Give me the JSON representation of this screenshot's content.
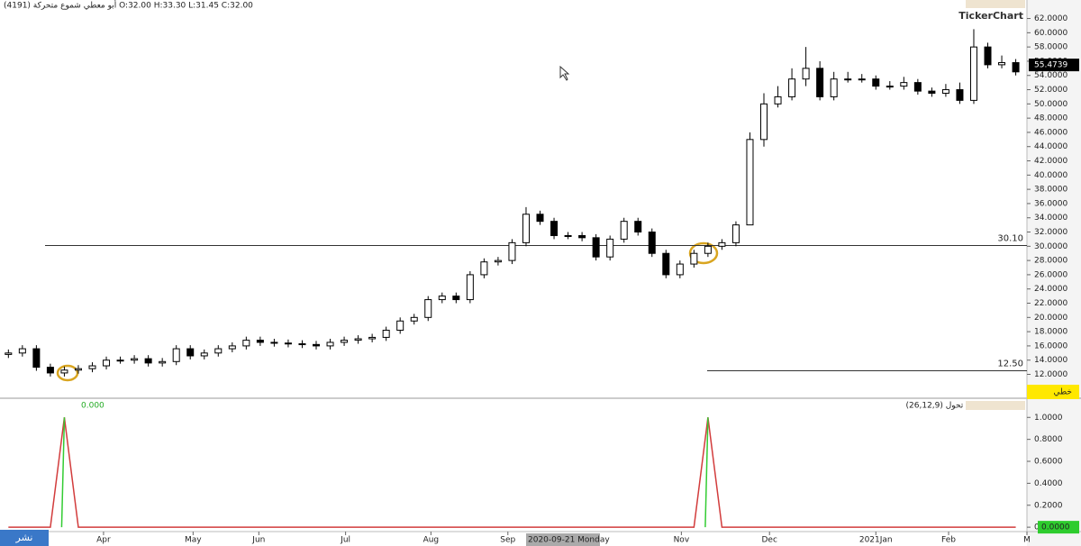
{
  "header": {
    "symbol_line": "أبو معطي شموع متحركة (4191) O:32.00 H:33.30 L:31.45 C:32.00",
    "logo": "TickerChart",
    "crosshair_date": "2020-09-21 Monday",
    "publish_button": "نشر",
    "style_button": "خطي"
  },
  "chart_data": [
    {
      "type": "candlestick",
      "xlim": [
        -0.6,
        72.8
      ],
      "ylim": [
        8.9,
        64.6
      ],
      "xticks": [
        {
          "value": 6.8,
          "label": "Apr"
        },
        {
          "value": 13.2,
          "label": "May"
        },
        {
          "value": 17.9,
          "label": "Jun"
        },
        {
          "value": 24.1,
          "label": "Jul"
        },
        {
          "value": 30.2,
          "label": "Aug"
        },
        {
          "value": 35.7,
          "label": "Sep"
        },
        {
          "value": 48.1,
          "label": "Nov"
        },
        {
          "value": 54.4,
          "label": "Dec"
        },
        {
          "value": 62.0,
          "label": "2021Jan"
        },
        {
          "value": 67.2,
          "label": "Feb"
        },
        {
          "value": 72.8,
          "label": "M"
        }
      ],
      "yticks": [
        {
          "value": 12,
          "label": "12.0000"
        },
        {
          "value": 14,
          "label": "14.0000"
        },
        {
          "value": 16,
          "label": "16.0000"
        },
        {
          "value": 18,
          "label": "18.0000"
        },
        {
          "value": 20,
          "label": "20.0000"
        },
        {
          "value": 22,
          "label": "22.0000"
        },
        {
          "value": 24,
          "label": "24.0000"
        },
        {
          "value": 26,
          "label": "26.0000"
        },
        {
          "value": 28,
          "label": "28.0000"
        },
        {
          "value": 30,
          "label": "30.0000"
        },
        {
          "value": 32,
          "label": "32.0000"
        },
        {
          "value": 34,
          "label": "34.0000"
        },
        {
          "value": 36,
          "label": "36.0000"
        },
        {
          "value": 38,
          "label": "38.0000"
        },
        {
          "value": 40,
          "label": "40.0000"
        },
        {
          "value": 42,
          "label": "42.0000"
        },
        {
          "value": 44,
          "label": "44.0000"
        },
        {
          "value": 46,
          "label": "46.0000"
        },
        {
          "value": 48,
          "label": "48.0000"
        },
        {
          "value": 50,
          "label": "50.0000"
        },
        {
          "value": 52,
          "label": "52.0000"
        },
        {
          "value": 54,
          "label": "54.0000"
        },
        {
          "value": 56,
          "label": "56.0000"
        },
        {
          "value": 58,
          "label": "58.0000"
        },
        {
          "value": 60,
          "label": "60.0000"
        },
        {
          "value": 62,
          "label": "62.0000"
        }
      ],
      "open": [
        14.8,
        15,
        15.6,
        13,
        12.2,
        12.6,
        12.8,
        13.2,
        14,
        14,
        14.2,
        13.6,
        13.8,
        15.6,
        14.6,
        15,
        15.6,
        16,
        16.8,
        16.5,
        16.4,
        16.3,
        16.2,
        16,
        16.5,
        16.8,
        17,
        17.2,
        18.2,
        19.5,
        20,
        22.5,
        23,
        22.5,
        26,
        27.8,
        28,
        30.5,
        34.5,
        33.5,
        31.5,
        31.5,
        31.2,
        28.5,
        31,
        33.5,
        32,
        29,
        26,
        27.5,
        29,
        30,
        30.5,
        33,
        45,
        50,
        51,
        53.5,
        55,
        51,
        53.5,
        53.5,
        53.5,
        52.5,
        52.5,
        53,
        51.8,
        51.5,
        52,
        50.5,
        58,
        55.5,
        55.8
      ],
      "high": [
        15.5,
        16.1,
        16.1,
        13.5,
        13.1,
        13.3,
        13.7,
        14.5,
        14.5,
        14.7,
        14.7,
        14.3,
        16.1,
        16.1,
        15.5,
        16.1,
        16.5,
        17.3,
        17.3,
        17,
        16.9,
        16.8,
        16.7,
        17,
        17.3,
        17.5,
        17.7,
        18.7,
        20,
        20.5,
        23,
        23.5,
        23.5,
        26.5,
        28.3,
        28.5,
        31,
        35.5,
        35,
        34,
        32,
        32,
        31.7,
        31.5,
        34,
        34,
        32.5,
        29.5,
        28,
        29.5,
        30.5,
        31,
        33.5,
        46,
        51.5,
        52.5,
        55,
        58,
        56,
        54.5,
        54.5,
        54.2,
        54,
        53.2,
        53.8,
        53.5,
        52.3,
        52.8,
        53,
        60.5,
        58.6,
        56.8,
        56.3
      ],
      "low": [
        14.3,
        14.5,
        12.5,
        11.7,
        11.7,
        12.1,
        12.3,
        12.7,
        13.5,
        13.5,
        13.1,
        13.1,
        13.3,
        14.1,
        14.1,
        14.5,
        15.1,
        15.5,
        16,
        15.9,
        15.8,
        15.7,
        15.5,
        15.5,
        16,
        16.3,
        16.5,
        16.7,
        17.7,
        19,
        19.5,
        22,
        22,
        22,
        25.5,
        27.3,
        27.5,
        30,
        33,
        31,
        31,
        30.7,
        28,
        28,
        30.5,
        31.5,
        28.5,
        25.5,
        25.5,
        27,
        28.5,
        29.5,
        30,
        33,
        44,
        49.5,
        50.5,
        52.5,
        50.5,
        50.5,
        53,
        53,
        52,
        52,
        52,
        51.3,
        51,
        51,
        50,
        50,
        55,
        55,
        54
      ],
      "close": [
        15,
        15.6,
        13,
        12.2,
        12.6,
        12.8,
        13.2,
        14,
        14,
        14.2,
        13.6,
        13.8,
        15.6,
        14.6,
        15,
        15.6,
        16,
        16.8,
        16.5,
        16.4,
        16.3,
        16.2,
        16,
        16.5,
        16.8,
        17,
        17.2,
        18.2,
        19.5,
        20,
        22.5,
        23,
        22.5,
        26,
        27.8,
        28,
        30.5,
        34.5,
        33.5,
        31.5,
        31.5,
        31.2,
        28.5,
        31,
        33.5,
        32,
        29,
        26,
        27.5,
        29,
        30,
        30.5,
        33,
        45,
        50,
        51,
        53.5,
        55,
        51,
        53.5,
        53.5,
        53.5,
        52.5,
        52.5,
        53,
        51.8,
        51.5,
        52,
        50.5,
        58,
        55.5,
        55.8,
        54.5
      ],
      "hlines": [
        {
          "value": 30.1,
          "label": "30.10"
        },
        {
          "value": 12.5,
          "label": "12.50"
        }
      ],
      "last_price": 55.4739
    },
    {
      "type": "line",
      "title": "توسعة تحول (26,12,9)",
      "legend_value": "0.000",
      "xlim": [
        -0.6,
        72.8
      ],
      "ylim": [
        -0.04,
        1.15
      ],
      "yticks": [
        {
          "value": 0,
          "label": "0.0000"
        },
        {
          "value": 0.2,
          "label": "0.2000"
        },
        {
          "value": 0.4,
          "label": "0.4000"
        },
        {
          "value": 0.6,
          "label": "0.6000"
        },
        {
          "value": 0.8,
          "label": "0.8000"
        },
        {
          "value": 1,
          "label": "1.0000"
        }
      ],
      "series": [
        {
          "color": "#d23c3c",
          "values": [
            0,
            0,
            0,
            0,
            1,
            0,
            0,
            0,
            0,
            0,
            0,
            0,
            0,
            0,
            0,
            0,
            0,
            0,
            0,
            0,
            0,
            0,
            0,
            0,
            0,
            0,
            0,
            0,
            0,
            0,
            0,
            0,
            0,
            0,
            0,
            0,
            0,
            0,
            0,
            0,
            0,
            0,
            0,
            0,
            0,
            0,
            0,
            0,
            0,
            0,
            1,
            0,
            0,
            0,
            0,
            0,
            0,
            0,
            0,
            0,
            0,
            0,
            0,
            0,
            0,
            0,
            0,
            0,
            0,
            0,
            0,
            0,
            0
          ]
        }
      ],
      "last_value": {
        "value": 0,
        "label": "0.0000"
      }
    }
  ]
}
